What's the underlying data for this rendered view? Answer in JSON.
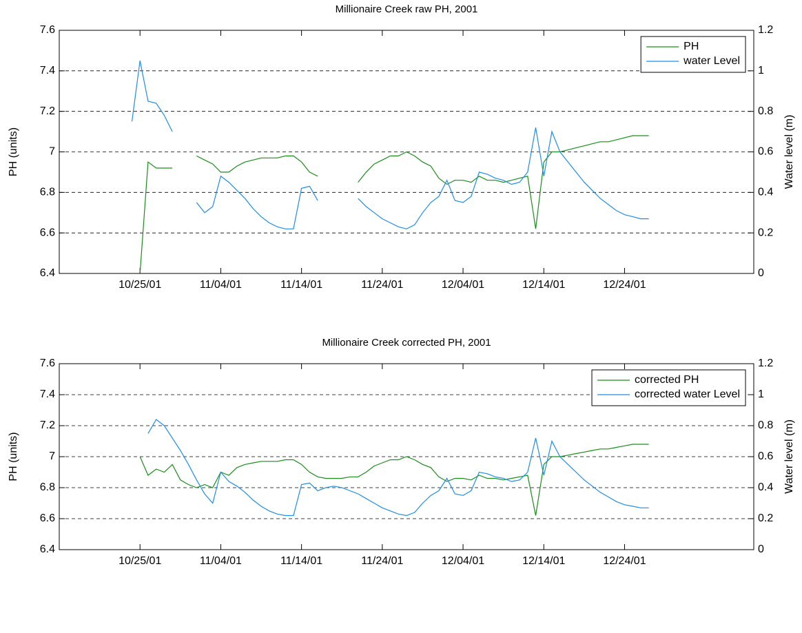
{
  "chart_data": [
    {
      "type": "line",
      "title": "Millionaire Creek raw PH, 2001",
      "ylabel": "PH (units)",
      "y2label": "Water level (m)",
      "x": [
        "2001-10-24",
        "2001-10-25",
        "2001-10-26",
        "2001-10-27",
        "2001-10-28",
        "2001-10-29",
        "2001-10-30",
        "2001-10-31",
        "2001-11-01",
        "2001-11-02",
        "2001-11-03",
        "2001-11-04",
        "2001-11-05",
        "2001-11-06",
        "2001-11-07",
        "2001-11-08",
        "2001-11-09",
        "2001-11-10",
        "2001-11-11",
        "2001-11-12",
        "2001-11-13",
        "2001-11-14",
        "2001-11-15",
        "2001-11-16",
        "2001-11-17",
        "2001-11-18",
        "2001-11-19",
        "2001-11-20",
        "2001-11-21",
        "2001-11-22",
        "2001-11-23",
        "2001-11-24",
        "2001-11-25",
        "2001-11-26",
        "2001-11-27",
        "2001-11-28",
        "2001-11-29",
        "2001-11-30",
        "2001-12-01",
        "2001-12-02",
        "2001-12-03",
        "2001-12-04",
        "2001-12-05",
        "2001-12-06",
        "2001-12-07",
        "2001-12-08",
        "2001-12-09",
        "2001-12-10",
        "2001-12-11",
        "2001-12-12",
        "2001-12-13",
        "2001-12-14",
        "2001-12-15",
        "2001-12-16",
        "2001-12-17",
        "2001-12-18",
        "2001-12-19",
        "2001-12-20",
        "2001-12-21",
        "2001-12-22",
        "2001-12-23",
        "2001-12-24",
        "2001-12-25",
        "2001-12-26",
        "2001-12-27"
      ],
      "series": [
        {
          "name": "PH",
          "color": "#1a8c1a",
          "values": [
            null,
            6.4,
            6.95,
            6.92,
            6.92,
            6.92,
            null,
            null,
            6.98,
            6.96,
            6.94,
            6.9,
            6.9,
            6.93,
            6.95,
            6.96,
            6.97,
            6.97,
            6.97,
            6.98,
            6.98,
            6.95,
            6.9,
            6.88,
            null,
            null,
            null,
            null,
            6.85,
            6.9,
            6.94,
            6.96,
            6.98,
            6.98,
            7.0,
            6.98,
            6.95,
            6.93,
            6.87,
            6.84,
            6.86,
            6.86,
            6.85,
            6.88,
            6.86,
            6.86,
            6.85,
            6.86,
            6.87,
            6.88,
            6.62,
            6.95,
            7.0,
            7.0,
            7.01,
            7.02,
            7.03,
            7.04,
            7.05,
            7.05,
            7.06,
            7.07,
            7.08,
            7.08,
            7.08
          ]
        },
        {
          "name": "water Level",
          "color": "#1f8ce6",
          "axis": "y2",
          "values": [
            0.75,
            1.05,
            0.85,
            0.84,
            0.78,
            0.7,
            null,
            null,
            0.35,
            0.3,
            0.33,
            0.48,
            0.45,
            0.41,
            0.37,
            0.32,
            0.28,
            0.25,
            0.23,
            0.22,
            0.22,
            0.42,
            0.43,
            0.36,
            null,
            null,
            null,
            null,
            0.37,
            0.33,
            0.3,
            0.27,
            0.25,
            0.23,
            0.22,
            0.24,
            0.3,
            0.35,
            0.38,
            0.46,
            0.36,
            0.35,
            0.38,
            0.5,
            0.49,
            0.47,
            0.46,
            0.44,
            0.45,
            0.5,
            0.72,
            0.48,
            0.7,
            0.6,
            0.55,
            0.5,
            0.45,
            0.41,
            0.37,
            0.34,
            0.31,
            0.29,
            0.28,
            0.27,
            0.27
          ]
        }
      ],
      "xlim": [
        "2001-10-15",
        "2002-01-09"
      ],
      "xticks": [
        {
          "value": "2001-10-25",
          "label": "10/25/01"
        },
        {
          "value": "2001-11-04",
          "label": "11/04/01"
        },
        {
          "value": "2001-11-14",
          "label": "11/14/01"
        },
        {
          "value": "2001-11-24",
          "label": "11/24/01"
        },
        {
          "value": "2001-12-04",
          "label": "12/04/01"
        },
        {
          "value": "2001-12-14",
          "label": "12/14/01"
        },
        {
          "value": "2001-12-24",
          "label": "12/24/01"
        }
      ],
      "ylim": [
        6.4,
        7.6
      ],
      "yticks": [
        6.4,
        6.6,
        6.8,
        7,
        7.2,
        7.4,
        7.6
      ],
      "y2lim": [
        0,
        1.2
      ],
      "y2ticks": [
        0,
        0.2,
        0.4,
        0.6,
        0.8,
        1,
        1.2
      ],
      "grid": true,
      "legend": "upper right"
    },
    {
      "type": "line",
      "title": "Millionaire Creek corrected PH, 2001",
      "ylabel": "PH (units)",
      "y2label": "Water level (m)",
      "x": [
        "2001-10-24",
        "2001-10-25",
        "2001-10-26",
        "2001-10-27",
        "2001-10-28",
        "2001-10-29",
        "2001-10-30",
        "2001-10-31",
        "2001-11-01",
        "2001-11-02",
        "2001-11-03",
        "2001-11-04",
        "2001-11-05",
        "2001-11-06",
        "2001-11-07",
        "2001-11-08",
        "2001-11-09",
        "2001-11-10",
        "2001-11-11",
        "2001-11-12",
        "2001-11-13",
        "2001-11-14",
        "2001-11-15",
        "2001-11-16",
        "2001-11-17",
        "2001-11-18",
        "2001-11-19",
        "2001-11-20",
        "2001-11-21",
        "2001-11-22",
        "2001-11-23",
        "2001-11-24",
        "2001-11-25",
        "2001-11-26",
        "2001-11-27",
        "2001-11-28",
        "2001-11-29",
        "2001-11-30",
        "2001-12-01",
        "2001-12-02",
        "2001-12-03",
        "2001-12-04",
        "2001-12-05",
        "2001-12-06",
        "2001-12-07",
        "2001-12-08",
        "2001-12-09",
        "2001-12-10",
        "2001-12-11",
        "2001-12-12",
        "2001-12-13",
        "2001-12-14",
        "2001-12-15",
        "2001-12-16",
        "2001-12-17",
        "2001-12-18",
        "2001-12-19",
        "2001-12-20",
        "2001-12-21",
        "2001-12-22",
        "2001-12-23",
        "2001-12-24",
        "2001-12-25",
        "2001-12-26",
        "2001-12-27"
      ],
      "series": [
        {
          "name": "corrected PH",
          "color": "#1a8c1a",
          "values": [
            null,
            7.0,
            6.88,
            6.92,
            6.9,
            6.95,
            6.85,
            6.82,
            6.8,
            6.82,
            6.8,
            6.9,
            6.88,
            6.93,
            6.95,
            6.96,
            6.97,
            6.97,
            6.97,
            6.98,
            6.98,
            6.95,
            6.9,
            6.87,
            6.86,
            6.86,
            6.86,
            6.87,
            6.87,
            6.9,
            6.94,
            6.96,
            6.98,
            6.98,
            7.0,
            6.98,
            6.95,
            6.93,
            6.87,
            6.84,
            6.86,
            6.86,
            6.85,
            6.88,
            6.86,
            6.86,
            6.85,
            6.86,
            6.87,
            6.88,
            6.62,
            6.95,
            7.0,
            7.0,
            7.01,
            7.02,
            7.03,
            7.04,
            7.05,
            7.05,
            7.06,
            7.07,
            7.08,
            7.08,
            7.08
          ]
        },
        {
          "name": "corrected water Level",
          "color": "#1f8ce6",
          "axis": "y2",
          "values": [
            null,
            null,
            0.75,
            0.84,
            0.8,
            0.72,
            0.64,
            0.55,
            0.45,
            0.36,
            0.3,
            0.5,
            0.44,
            0.41,
            0.37,
            0.32,
            0.28,
            0.25,
            0.23,
            0.22,
            0.22,
            0.42,
            0.43,
            0.38,
            0.4,
            0.41,
            0.4,
            0.38,
            0.36,
            0.33,
            0.3,
            0.27,
            0.25,
            0.23,
            0.22,
            0.24,
            0.3,
            0.35,
            0.38,
            0.46,
            0.36,
            0.35,
            0.38,
            0.5,
            0.49,
            0.47,
            0.46,
            0.44,
            0.45,
            0.5,
            0.72,
            0.48,
            0.7,
            0.6,
            0.55,
            0.5,
            0.45,
            0.41,
            0.37,
            0.34,
            0.31,
            0.29,
            0.28,
            0.27,
            0.27
          ]
        }
      ],
      "xlim": [
        "2001-10-15",
        "2002-01-09"
      ],
      "xticks": [
        {
          "value": "2001-10-25",
          "label": "10/25/01"
        },
        {
          "value": "2001-11-04",
          "label": "11/04/01"
        },
        {
          "value": "2001-11-14",
          "label": "11/14/01"
        },
        {
          "value": "2001-11-24",
          "label": "11/24/01"
        },
        {
          "value": "2001-12-04",
          "label": "12/04/01"
        },
        {
          "value": "2001-12-14",
          "label": "12/14/01"
        },
        {
          "value": "2001-12-24",
          "label": "12/24/01"
        }
      ],
      "ylim": [
        6.4,
        7.6
      ],
      "yticks": [
        6.4,
        6.6,
        6.8,
        7,
        7.2,
        7.4,
        7.6
      ],
      "y2lim": [
        0,
        1.2
      ],
      "y2ticks": [
        0,
        0.2,
        0.4,
        0.6,
        0.8,
        1,
        1.2
      ],
      "grid": true,
      "legend": "upper right"
    }
  ]
}
